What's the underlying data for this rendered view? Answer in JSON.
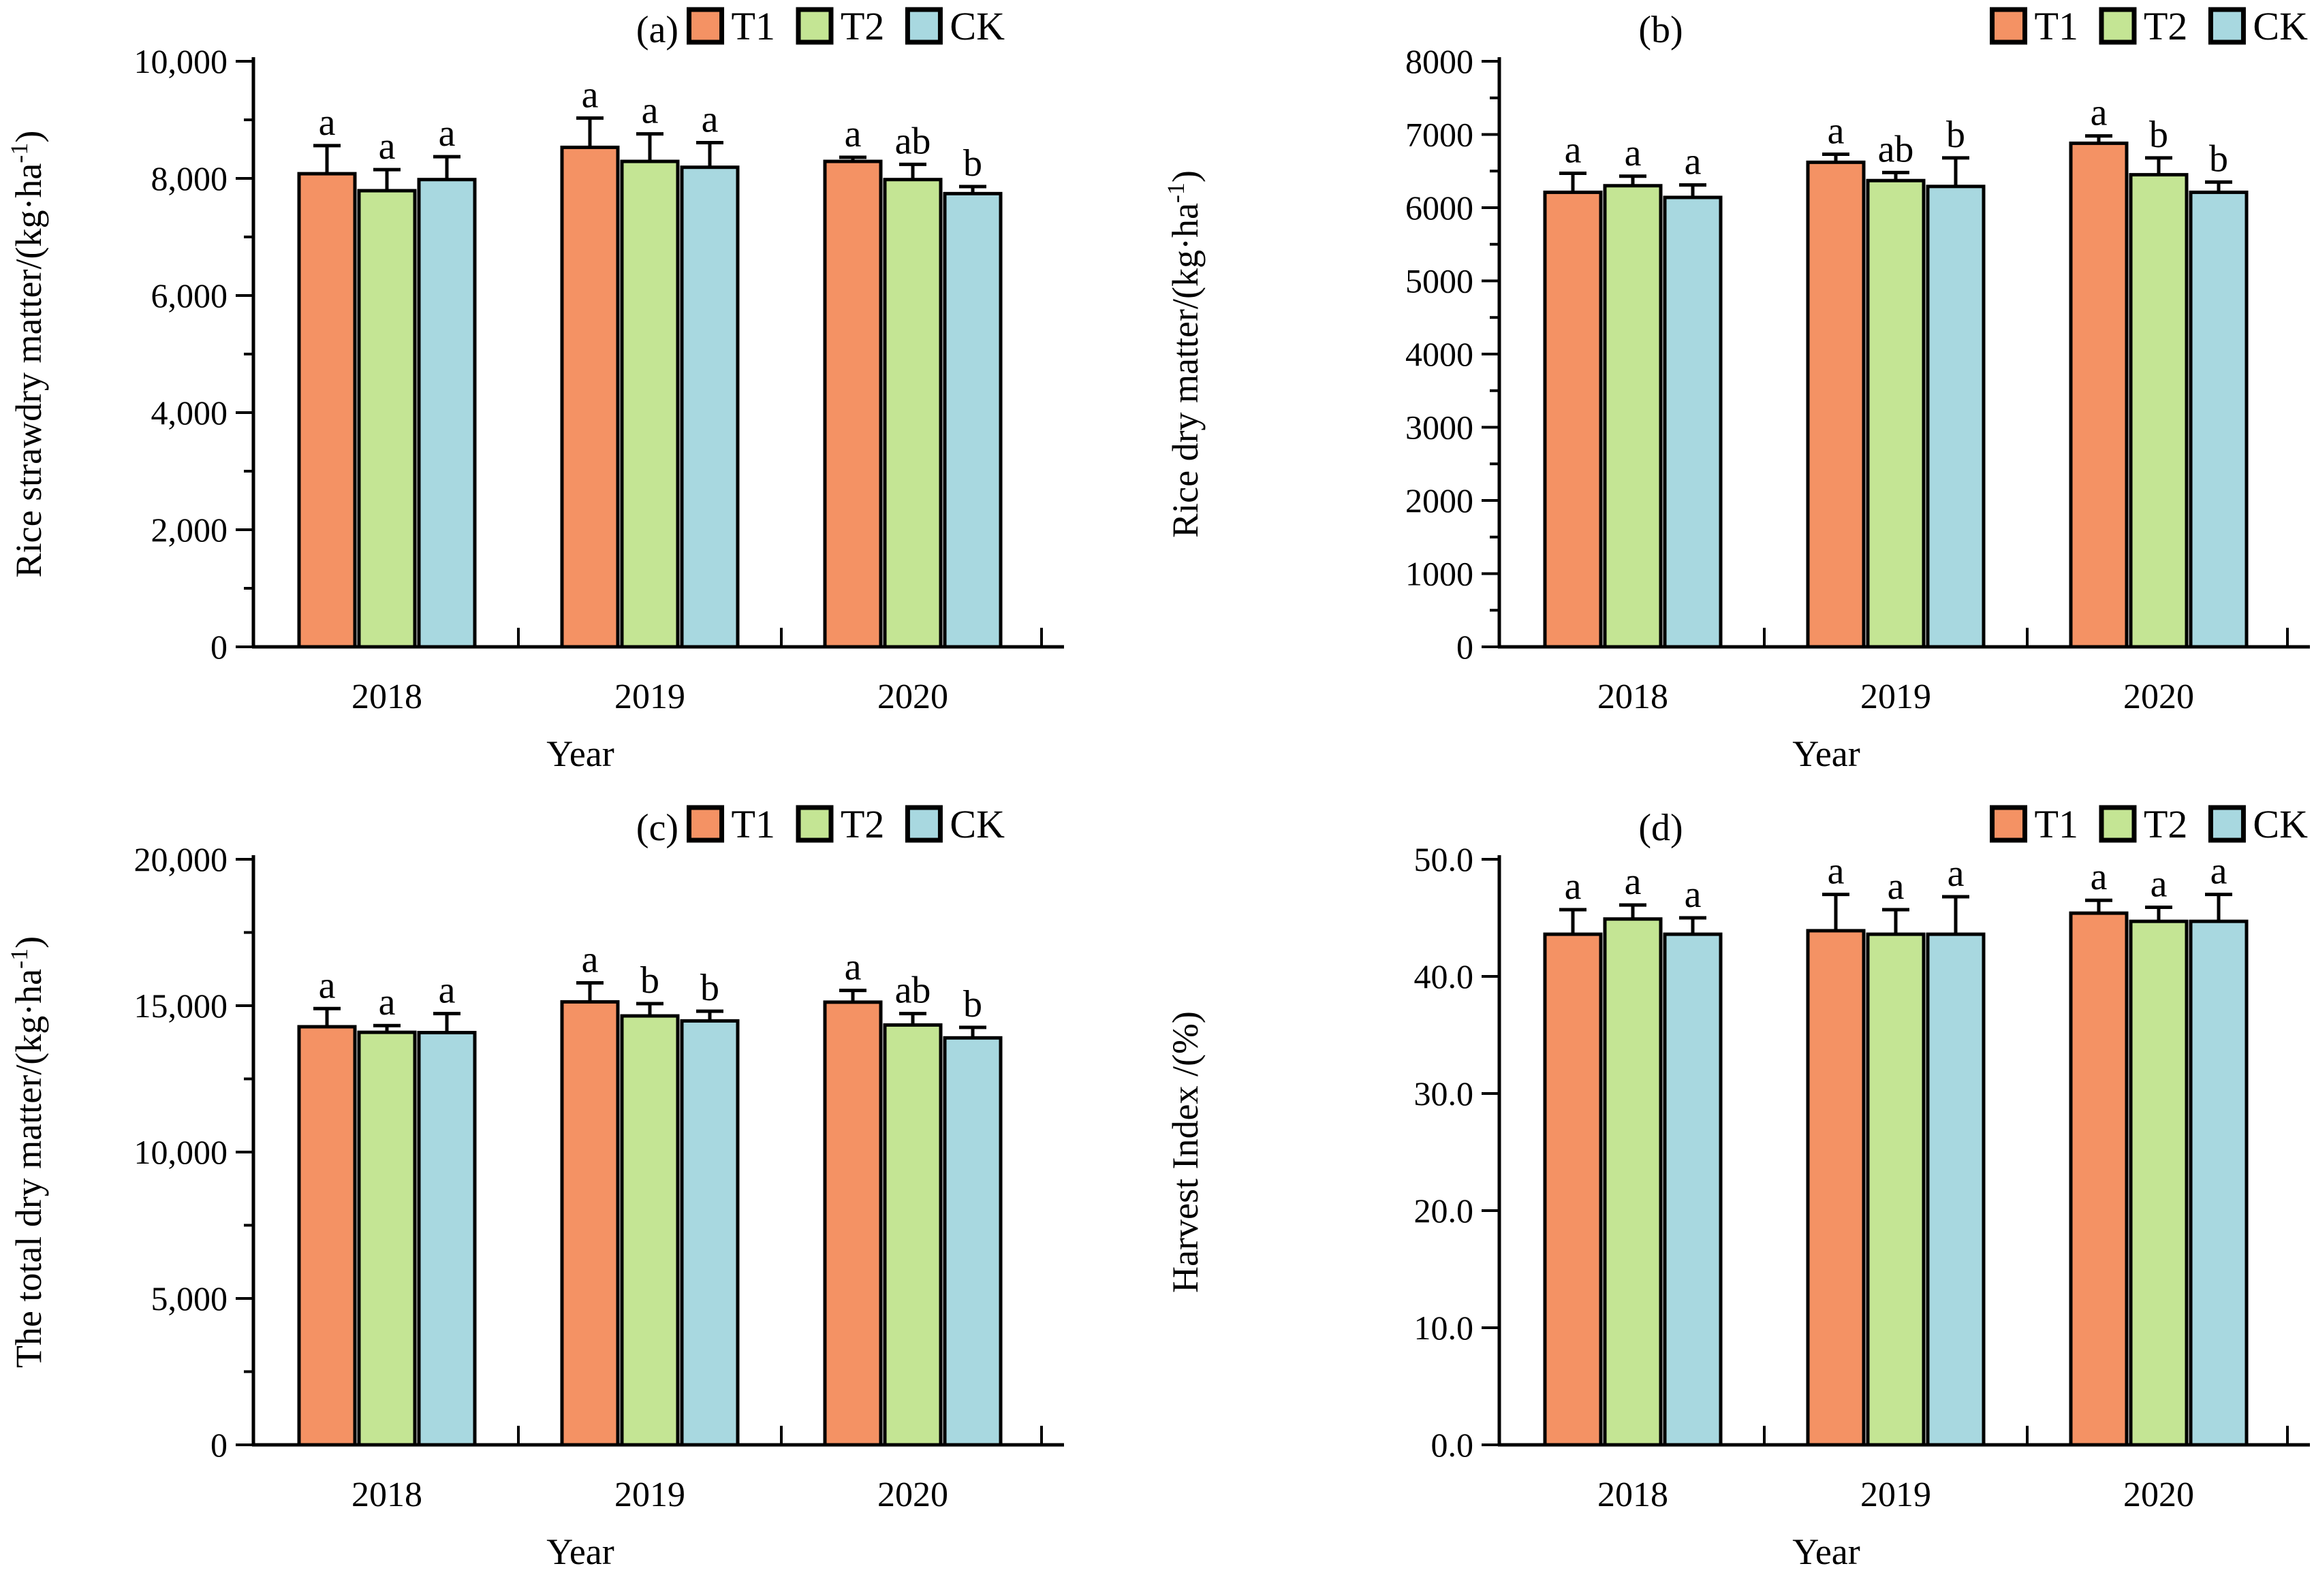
{
  "figure_background": "#ffffff",
  "legend": {
    "items": [
      "T1",
      "T2",
      "CK"
    ]
  },
  "series_colors": {
    "T1": "#F49264",
    "T2": "#C4E594",
    "CK": "#A8D8E0"
  },
  "chart_data": [
    {
      "type": "bar",
      "panel_label": "(a)",
      "ylabel": "Rice strawdry matter/(kg·ha-1)",
      "ylabel_pre": "Rice strawdry matter/(kg·ha",
      "ylabel_sup": "-1",
      "ylabel_post": ")",
      "xlabel": "Year",
      "categories": [
        "2018",
        "2019",
        "2020"
      ],
      "ylim": [
        0,
        10000
      ],
      "ytick_step": 2000,
      "minor_tick_step": 1000,
      "ytick_labels": [
        "0",
        "2,000",
        "4,000",
        "6,000",
        "8,000",
        "10,000"
      ],
      "grid": false,
      "legend_position": "top-right",
      "series": [
        {
          "name": "T1",
          "color": "#F49264",
          "values": [
            8080,
            8530,
            8290
          ],
          "errors": [
            480,
            500,
            70
          ],
          "sig_letters": [
            "a",
            "a",
            "a"
          ]
        },
        {
          "name": "T2",
          "color": "#C4E594",
          "values": [
            7790,
            8290,
            7980
          ],
          "errors": [
            360,
            470,
            260
          ],
          "sig_letters": [
            "a",
            "a",
            "ab"
          ]
        },
        {
          "name": "CK",
          "color": "#A8D8E0",
          "values": [
            7980,
            8190,
            7740
          ],
          "errors": [
            390,
            420,
            120
          ],
          "sig_letters": [
            "a",
            "a",
            "b"
          ]
        }
      ]
    },
    {
      "type": "bar",
      "panel_label": "(b)",
      "ylabel": "Rice dry matter/(kg·ha-1)",
      "ylabel_pre": "Rice dry matter/(kg·ha",
      "ylabel_sup": "-1",
      "ylabel_post": ")",
      "xlabel": "Year",
      "categories": [
        "2018",
        "2019",
        "2020"
      ],
      "ylim": [
        0,
        8000
      ],
      "ytick_step": 1000,
      "minor_tick_step": 500,
      "ytick_labels": [
        "0",
        "1000",
        "2000",
        "3000",
        "4000",
        "5000",
        "6000",
        "7000",
        "8000"
      ],
      "grid": false,
      "legend_position": "top-right",
      "series": [
        {
          "name": "T1",
          "color": "#F49264",
          "values": [
            6210,
            6620,
            6880
          ],
          "errors": [
            260,
            110,
            100
          ],
          "sig_letters": [
            "a",
            "a",
            "a"
          ]
        },
        {
          "name": "T2",
          "color": "#C4E594",
          "values": [
            6300,
            6370,
            6450
          ],
          "errors": [
            130,
            110,
            230
          ],
          "sig_letters": [
            "a",
            "ab",
            "b"
          ]
        },
        {
          "name": "CK",
          "color": "#A8D8E0",
          "values": [
            6140,
            6290,
            6210
          ],
          "errors": [
            170,
            390,
            140
          ],
          "sig_letters": [
            "a",
            "b",
            "b"
          ]
        }
      ]
    },
    {
      "type": "bar",
      "panel_label": "(c)",
      "ylabel": "The total dry matter/(kg·ha-1)",
      "ylabel_pre": "The total dry matter/(kg·ha",
      "ylabel_sup": "-1",
      "ylabel_post": ")",
      "xlabel": "Year",
      "categories": [
        "2018",
        "2019",
        "2020"
      ],
      "ylim": [
        0,
        20000
      ],
      "ytick_step": 5000,
      "minor_tick_step": 2500,
      "ytick_labels": [
        "0",
        "5,000",
        "10,000",
        "15,000",
        "20,000"
      ],
      "grid": false,
      "legend_position": "top-right",
      "series": [
        {
          "name": "T1",
          "color": "#F49264",
          "values": [
            14280,
            15130,
            15120
          ],
          "errors": [
            620,
            650,
            400
          ],
          "sig_letters": [
            "a",
            "a",
            "a"
          ]
        },
        {
          "name": "T2",
          "color": "#C4E594",
          "values": [
            14090,
            14650,
            14340
          ],
          "errors": [
            230,
            420,
            390
          ],
          "sig_letters": [
            "a",
            "b",
            "ab"
          ]
        },
        {
          "name": "CK",
          "color": "#A8D8E0",
          "values": [
            14080,
            14480,
            13900
          ],
          "errors": [
            650,
            330,
            360
          ],
          "sig_letters": [
            "a",
            "b",
            "b"
          ]
        }
      ]
    },
    {
      "type": "bar",
      "panel_label": "(d)",
      "ylabel": "Harvest Index /(%)",
      "ylabel_pre": "Harvest Index /(%)",
      "ylabel_sup": "",
      "ylabel_post": "",
      "xlabel": "Year",
      "categories": [
        "2018",
        "2019",
        "2020"
      ],
      "ylim": [
        0,
        50
      ],
      "ytick_step": 10,
      "minor_tick_step": null,
      "ytick_labels": [
        "0.0",
        "10.0",
        "20.0",
        "30.0",
        "40.0",
        "50.0"
      ],
      "grid": false,
      "legend_position": "top-right",
      "series": [
        {
          "name": "T1",
          "color": "#F49264",
          "values": [
            43.6,
            43.9,
            45.4
          ],
          "errors": [
            2.1,
            3.1,
            1.1
          ],
          "sig_letters": [
            "a",
            "a",
            "a"
          ]
        },
        {
          "name": "T2",
          "color": "#C4E594",
          "values": [
            44.9,
            43.6,
            44.7
          ],
          "errors": [
            1.2,
            2.1,
            1.2
          ],
          "sig_letters": [
            "a",
            "a",
            "a"
          ]
        },
        {
          "name": "CK",
          "color": "#A8D8E0",
          "values": [
            43.6,
            43.6,
            44.7
          ],
          "errors": [
            1.4,
            3.2,
            2.3
          ],
          "sig_letters": [
            "a",
            "a",
            "a"
          ]
        }
      ]
    }
  ]
}
